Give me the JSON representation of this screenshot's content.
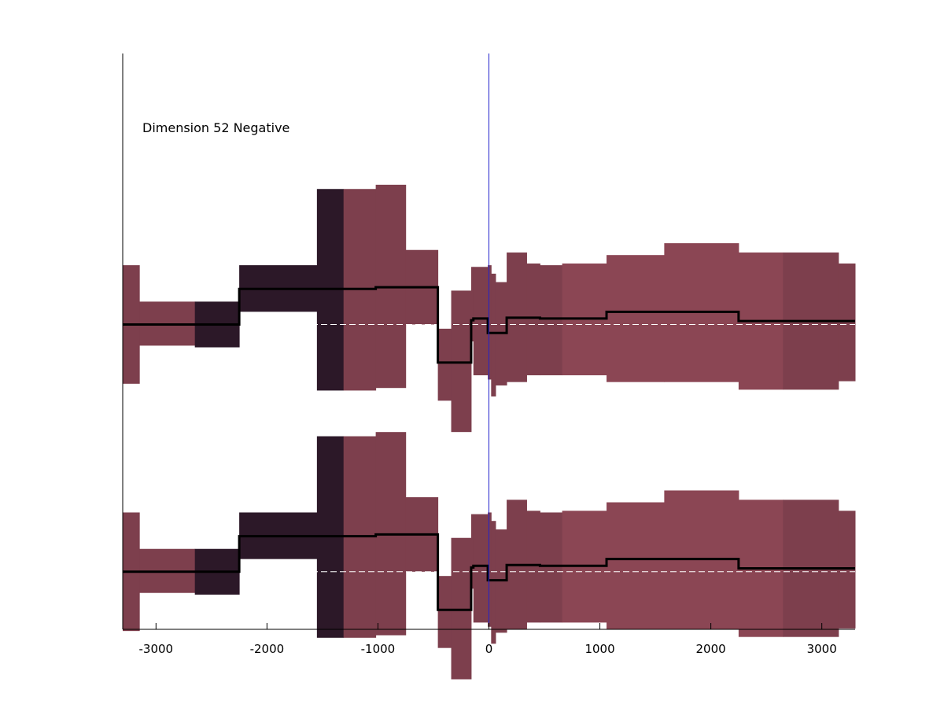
{
  "chart_data": {
    "type": "area",
    "title": "",
    "annotation": "Dimension 52 Negative",
    "xlabel": "",
    "ylabel": "",
    "xlim": [
      -3300,
      3300
    ],
    "ylim": [
      -3.6,
      3.2
    ],
    "xticks": [
      -3000,
      -2000,
      -1000,
      0,
      1000,
      2000,
      3000
    ],
    "xtick_labels": [
      "-3000",
      "-2000",
      "-1000",
      "0",
      "1000",
      "2000",
      "3000"
    ],
    "yticks_shown": false,
    "vertical_line_x": 0,
    "colors": {
      "band": "#7d3f4d",
      "band_light": "#8b4654",
      "band_dark": "#2c1828",
      "mean": "#000000",
      "reference": "#ffffff",
      "zero_line": "#2222cc"
    },
    "panels": [
      {
        "name": "upper",
        "baseline": 0,
        "segments": [
          {
            "x0": -3300,
            "x1": -3150,
            "lo": -0.7,
            "hi": 0.7,
            "mean": 0.0,
            "shade": "band"
          },
          {
            "x0": -3150,
            "x1": -2650,
            "lo": -0.25,
            "hi": 0.27,
            "mean": 0.0,
            "shade": "band"
          },
          {
            "x0": -2650,
            "x1": -2250,
            "lo": -0.27,
            "hi": 0.27,
            "mean": 0.0,
            "shade": "dark"
          },
          {
            "x0": -2250,
            "x1": -1550,
            "lo": 0.15,
            "hi": 0.7,
            "mean": 0.42,
            "shade": "dark"
          },
          {
            "x0": -1550,
            "x1": -1310,
            "lo": -0.78,
            "hi": 1.6,
            "mean": 0.42,
            "shade": "dark"
          },
          {
            "x0": -1310,
            "x1": -1020,
            "lo": -0.78,
            "hi": 1.6,
            "mean": 0.42,
            "shade": "band"
          },
          {
            "x0": -1020,
            "x1": -750,
            "lo": -0.75,
            "hi": 1.65,
            "mean": 0.44,
            "shade": "band"
          },
          {
            "x0": -750,
            "x1": -460,
            "lo": 0.0,
            "hi": 0.88,
            "mean": 0.44,
            "shade": "band"
          },
          {
            "x0": -460,
            "x1": -340,
            "lo": -0.9,
            "hi": -0.05,
            "mean": -0.45,
            "shade": "band"
          },
          {
            "x0": -340,
            "x1": -160,
            "lo": -1.27,
            "hi": 0.4,
            "mean": -0.45,
            "shade": "band"
          },
          {
            "x0": -160,
            "x1": -140,
            "lo": -0.2,
            "hi": 0.68,
            "mean": 0.05,
            "shade": "band"
          },
          {
            "x0": -140,
            "x1": -10,
            "lo": -0.6,
            "hi": 0.68,
            "mean": 0.07,
            "shade": "band"
          },
          {
            "x0": -10,
            "x1": 20,
            "lo": -0.65,
            "hi": 0.7,
            "mean": -0.1,
            "shade": "band"
          },
          {
            "x0": 20,
            "x1": 60,
            "lo": -0.85,
            "hi": 0.6,
            "mean": -0.1,
            "shade": "band"
          },
          {
            "x0": 60,
            "x1": 160,
            "lo": -0.72,
            "hi": 0.5,
            "mean": -0.1,
            "shade": "band"
          },
          {
            "x0": 160,
            "x1": 340,
            "lo": -0.68,
            "hi": 0.85,
            "mean": 0.08,
            "shade": "band"
          },
          {
            "x0": 340,
            "x1": 460,
            "lo": -0.6,
            "hi": 0.72,
            "mean": 0.08,
            "shade": "band"
          },
          {
            "x0": 460,
            "x1": 660,
            "lo": -0.6,
            "hi": 0.7,
            "mean": 0.07,
            "shade": "band"
          },
          {
            "x0": 660,
            "x1": 1060,
            "lo": -0.6,
            "hi": 0.72,
            "mean": 0.07,
            "shade": "light"
          },
          {
            "x0": 1060,
            "x1": 1580,
            "lo": -0.68,
            "hi": 0.82,
            "mean": 0.15,
            "shade": "light"
          },
          {
            "x0": 1580,
            "x1": 2250,
            "lo": -0.68,
            "hi": 0.96,
            "mean": 0.15,
            "shade": "light"
          },
          {
            "x0": 2250,
            "x1": 2650,
            "lo": -0.77,
            "hi": 0.85,
            "mean": 0.04,
            "shade": "light"
          },
          {
            "x0": 2650,
            "x1": 3150,
            "lo": -0.77,
            "hi": 0.85,
            "mean": 0.04,
            "shade": "band"
          },
          {
            "x0": 3150,
            "x1": 3300,
            "lo": -0.67,
            "hi": 0.72,
            "mean": 0.04,
            "shade": "band"
          }
        ]
      },
      {
        "name": "lower",
        "baseline": -2.92,
        "segments": [
          {
            "x0": -3300,
            "x1": -3150,
            "lo": -0.7,
            "hi": 0.7,
            "mean": 0.0,
            "shade": "band"
          },
          {
            "x0": -3150,
            "x1": -2650,
            "lo": -0.25,
            "hi": 0.27,
            "mean": 0.0,
            "shade": "band"
          },
          {
            "x0": -2650,
            "x1": -2250,
            "lo": -0.27,
            "hi": 0.27,
            "mean": 0.0,
            "shade": "dark"
          },
          {
            "x0": -2250,
            "x1": -1550,
            "lo": 0.15,
            "hi": 0.7,
            "mean": 0.42,
            "shade": "dark"
          },
          {
            "x0": -1550,
            "x1": -1310,
            "lo": -0.78,
            "hi": 1.6,
            "mean": 0.42,
            "shade": "dark"
          },
          {
            "x0": -1310,
            "x1": -1020,
            "lo": -0.78,
            "hi": 1.6,
            "mean": 0.42,
            "shade": "band"
          },
          {
            "x0": -1020,
            "x1": -750,
            "lo": -0.75,
            "hi": 1.65,
            "mean": 0.44,
            "shade": "band"
          },
          {
            "x0": -750,
            "x1": -460,
            "lo": 0.0,
            "hi": 0.88,
            "mean": 0.44,
            "shade": "band"
          },
          {
            "x0": -460,
            "x1": -340,
            "lo": -0.9,
            "hi": -0.05,
            "mean": -0.45,
            "shade": "band"
          },
          {
            "x0": -340,
            "x1": -160,
            "lo": -1.27,
            "hi": 0.4,
            "mean": -0.45,
            "shade": "band"
          },
          {
            "x0": -160,
            "x1": -140,
            "lo": -0.2,
            "hi": 0.68,
            "mean": 0.05,
            "shade": "band"
          },
          {
            "x0": -140,
            "x1": -10,
            "lo": -0.6,
            "hi": 0.68,
            "mean": 0.07,
            "shade": "band"
          },
          {
            "x0": -10,
            "x1": 20,
            "lo": -0.65,
            "hi": 0.7,
            "mean": -0.1,
            "shade": "band"
          },
          {
            "x0": 20,
            "x1": 60,
            "lo": -0.85,
            "hi": 0.6,
            "mean": -0.1,
            "shade": "band"
          },
          {
            "x0": 60,
            "x1": 160,
            "lo": -0.72,
            "hi": 0.5,
            "mean": -0.1,
            "shade": "band"
          },
          {
            "x0": 160,
            "x1": 340,
            "lo": -0.68,
            "hi": 0.85,
            "mean": 0.08,
            "shade": "band"
          },
          {
            "x0": 340,
            "x1": 460,
            "lo": -0.6,
            "hi": 0.72,
            "mean": 0.08,
            "shade": "band"
          },
          {
            "x0": 460,
            "x1": 660,
            "lo": -0.6,
            "hi": 0.7,
            "mean": 0.07,
            "shade": "band"
          },
          {
            "x0": 660,
            "x1": 1060,
            "lo": -0.6,
            "hi": 0.72,
            "mean": 0.07,
            "shade": "light"
          },
          {
            "x0": 1060,
            "x1": 1580,
            "lo": -0.68,
            "hi": 0.82,
            "mean": 0.15,
            "shade": "light"
          },
          {
            "x0": 1580,
            "x1": 2250,
            "lo": -0.68,
            "hi": 0.96,
            "mean": 0.15,
            "shade": "light"
          },
          {
            "x0": 2250,
            "x1": 2650,
            "lo": -0.77,
            "hi": 0.85,
            "mean": 0.04,
            "shade": "light"
          },
          {
            "x0": 2650,
            "x1": 3150,
            "lo": -0.77,
            "hi": 0.85,
            "mean": 0.04,
            "shade": "band"
          },
          {
            "x0": 3150,
            "x1": 3300,
            "lo": -0.67,
            "hi": 0.72,
            "mean": 0.04,
            "shade": "band"
          }
        ]
      }
    ]
  }
}
